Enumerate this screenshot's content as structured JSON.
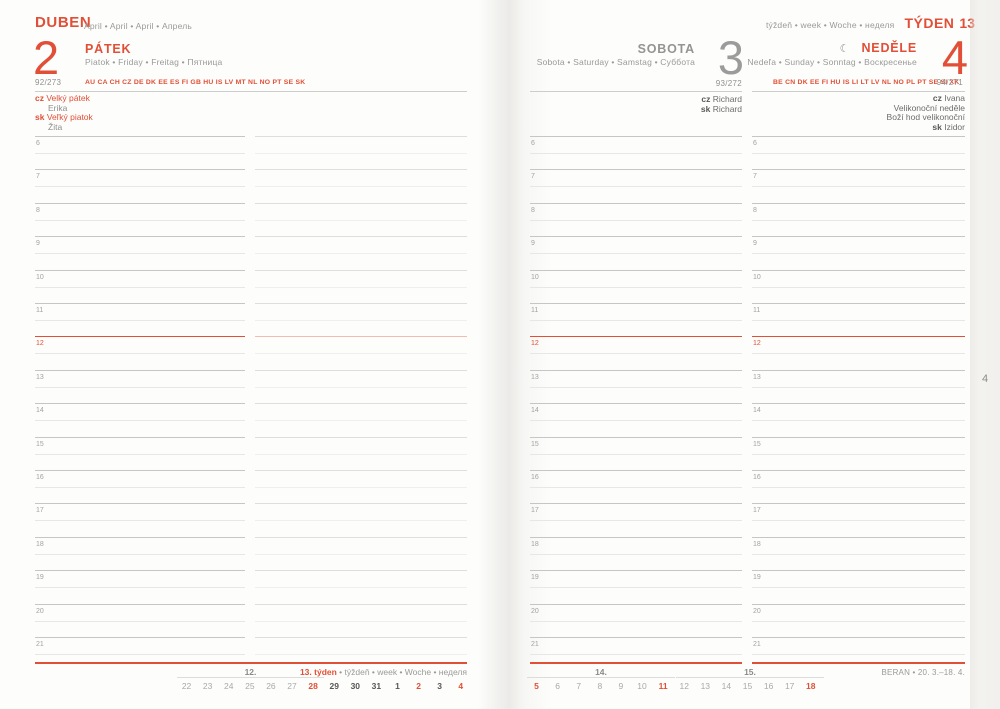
{
  "accent_color": "#e14f37",
  "saturday_color": "#9b9b9b",
  "page_header": {
    "month": "DUBEN",
    "month_langs": "April • April • April • Апрель",
    "week_langs": "týždeň • week • Woche • неделя",
    "week_word": "TÝDEN",
    "week_number": "13"
  },
  "days": [
    {
      "big_number": "2",
      "name": "PÁTEK",
      "langs": "Piatok • Friday • Freitag • Пятница",
      "day_of_year": "92/273",
      "codes": "AU CA CH CZ DE DK EE ES FI GB HU IS LV MT NL NO PT SE SK",
      "entries": [
        {
          "prefix": "cz",
          "text": "Velký pátek",
          "style": "holiday"
        },
        {
          "prefix": "",
          "text": "Erika",
          "style": "nameday"
        },
        {
          "prefix": "sk",
          "text": "Veľký piatok",
          "style": "holiday"
        },
        {
          "prefix": "",
          "text": "Žita",
          "style": "nameday"
        }
      ]
    },
    {
      "big_number": "3",
      "name": "SOBOTA",
      "langs": "Sobota • Saturday • Samstag • Суббота",
      "day_of_year": "93/272",
      "codes": "",
      "entries": [
        {
          "prefix": "cz",
          "text": "Richard",
          "style": "plain"
        },
        {
          "prefix": "sk",
          "text": "Richard",
          "style": "plain"
        }
      ]
    },
    {
      "moon": "☾",
      "big_number": "4",
      "name": "NEDĚLE",
      "langs": "Nedeľa • Sunday • Sonntag • Воскресенье",
      "day_of_year": "94/271",
      "codes": "BE CN DK EE FI HU IS LI LT LV NL NO PL PT SE SI XK",
      "entries": [
        {
          "prefix": "cz",
          "text": "Ivana",
          "style": "plain"
        },
        {
          "prefix": "",
          "text": "Velikonoční neděle",
          "style": "plain"
        },
        {
          "prefix": "",
          "text": "Boží hod velikonoční",
          "style": "plain"
        },
        {
          "prefix": "sk",
          "text": "Izidor",
          "style": "plain"
        }
      ]
    }
  ],
  "schedule": {
    "hours": [
      "6",
      "7",
      "8",
      "9",
      "10",
      "11",
      "12",
      "13",
      "14",
      "15",
      "16",
      "17",
      "18",
      "19",
      "20",
      "21"
    ],
    "highlight_hour": "12"
  },
  "footer": {
    "left": {
      "prev_week_label": "12.",
      "current_week_label": "13. týden",
      "current_week_suffix": " • týždeň • week • Woche • неделя",
      "prev_days": [
        {
          "t": "22",
          "c": "muted"
        },
        {
          "t": "23",
          "c": "muted"
        },
        {
          "t": "24",
          "c": "muted"
        },
        {
          "t": "25",
          "c": "muted"
        },
        {
          "t": "26",
          "c": "muted"
        },
        {
          "t": "27",
          "c": "muted"
        },
        {
          "t": "28",
          "c": "red"
        }
      ],
      "current_days": [
        {
          "t": "29",
          "c": "dark"
        },
        {
          "t": "30",
          "c": "dark"
        },
        {
          "t": "31",
          "c": "dark"
        },
        {
          "t": "1",
          "c": "dark"
        },
        {
          "t": "2",
          "c": "red"
        },
        {
          "t": "3",
          "c": "dark"
        },
        {
          "t": "4",
          "c": "red"
        }
      ]
    },
    "right": {
      "week14_label": "14.",
      "week14_days": [
        {
          "t": "5",
          "c": "red"
        },
        {
          "t": "6",
          "c": "muted"
        },
        {
          "t": "7",
          "c": "muted"
        },
        {
          "t": "8",
          "c": "muted"
        },
        {
          "t": "9",
          "c": "muted"
        },
        {
          "t": "10",
          "c": "muted"
        },
        {
          "t": "11",
          "c": "red"
        }
      ],
      "week15_label": "15.",
      "week15_days": [
        {
          "t": "12",
          "c": "muted"
        },
        {
          "t": "13",
          "c": "muted"
        },
        {
          "t": "14",
          "c": "muted"
        },
        {
          "t": "15",
          "c": "muted"
        },
        {
          "t": "16",
          "c": "muted"
        },
        {
          "t": "17",
          "c": "muted"
        },
        {
          "t": "18",
          "c": "red"
        }
      ],
      "zodiac": "BERAN • 20. 3.–18. 4."
    }
  },
  "edge_tab": "4"
}
